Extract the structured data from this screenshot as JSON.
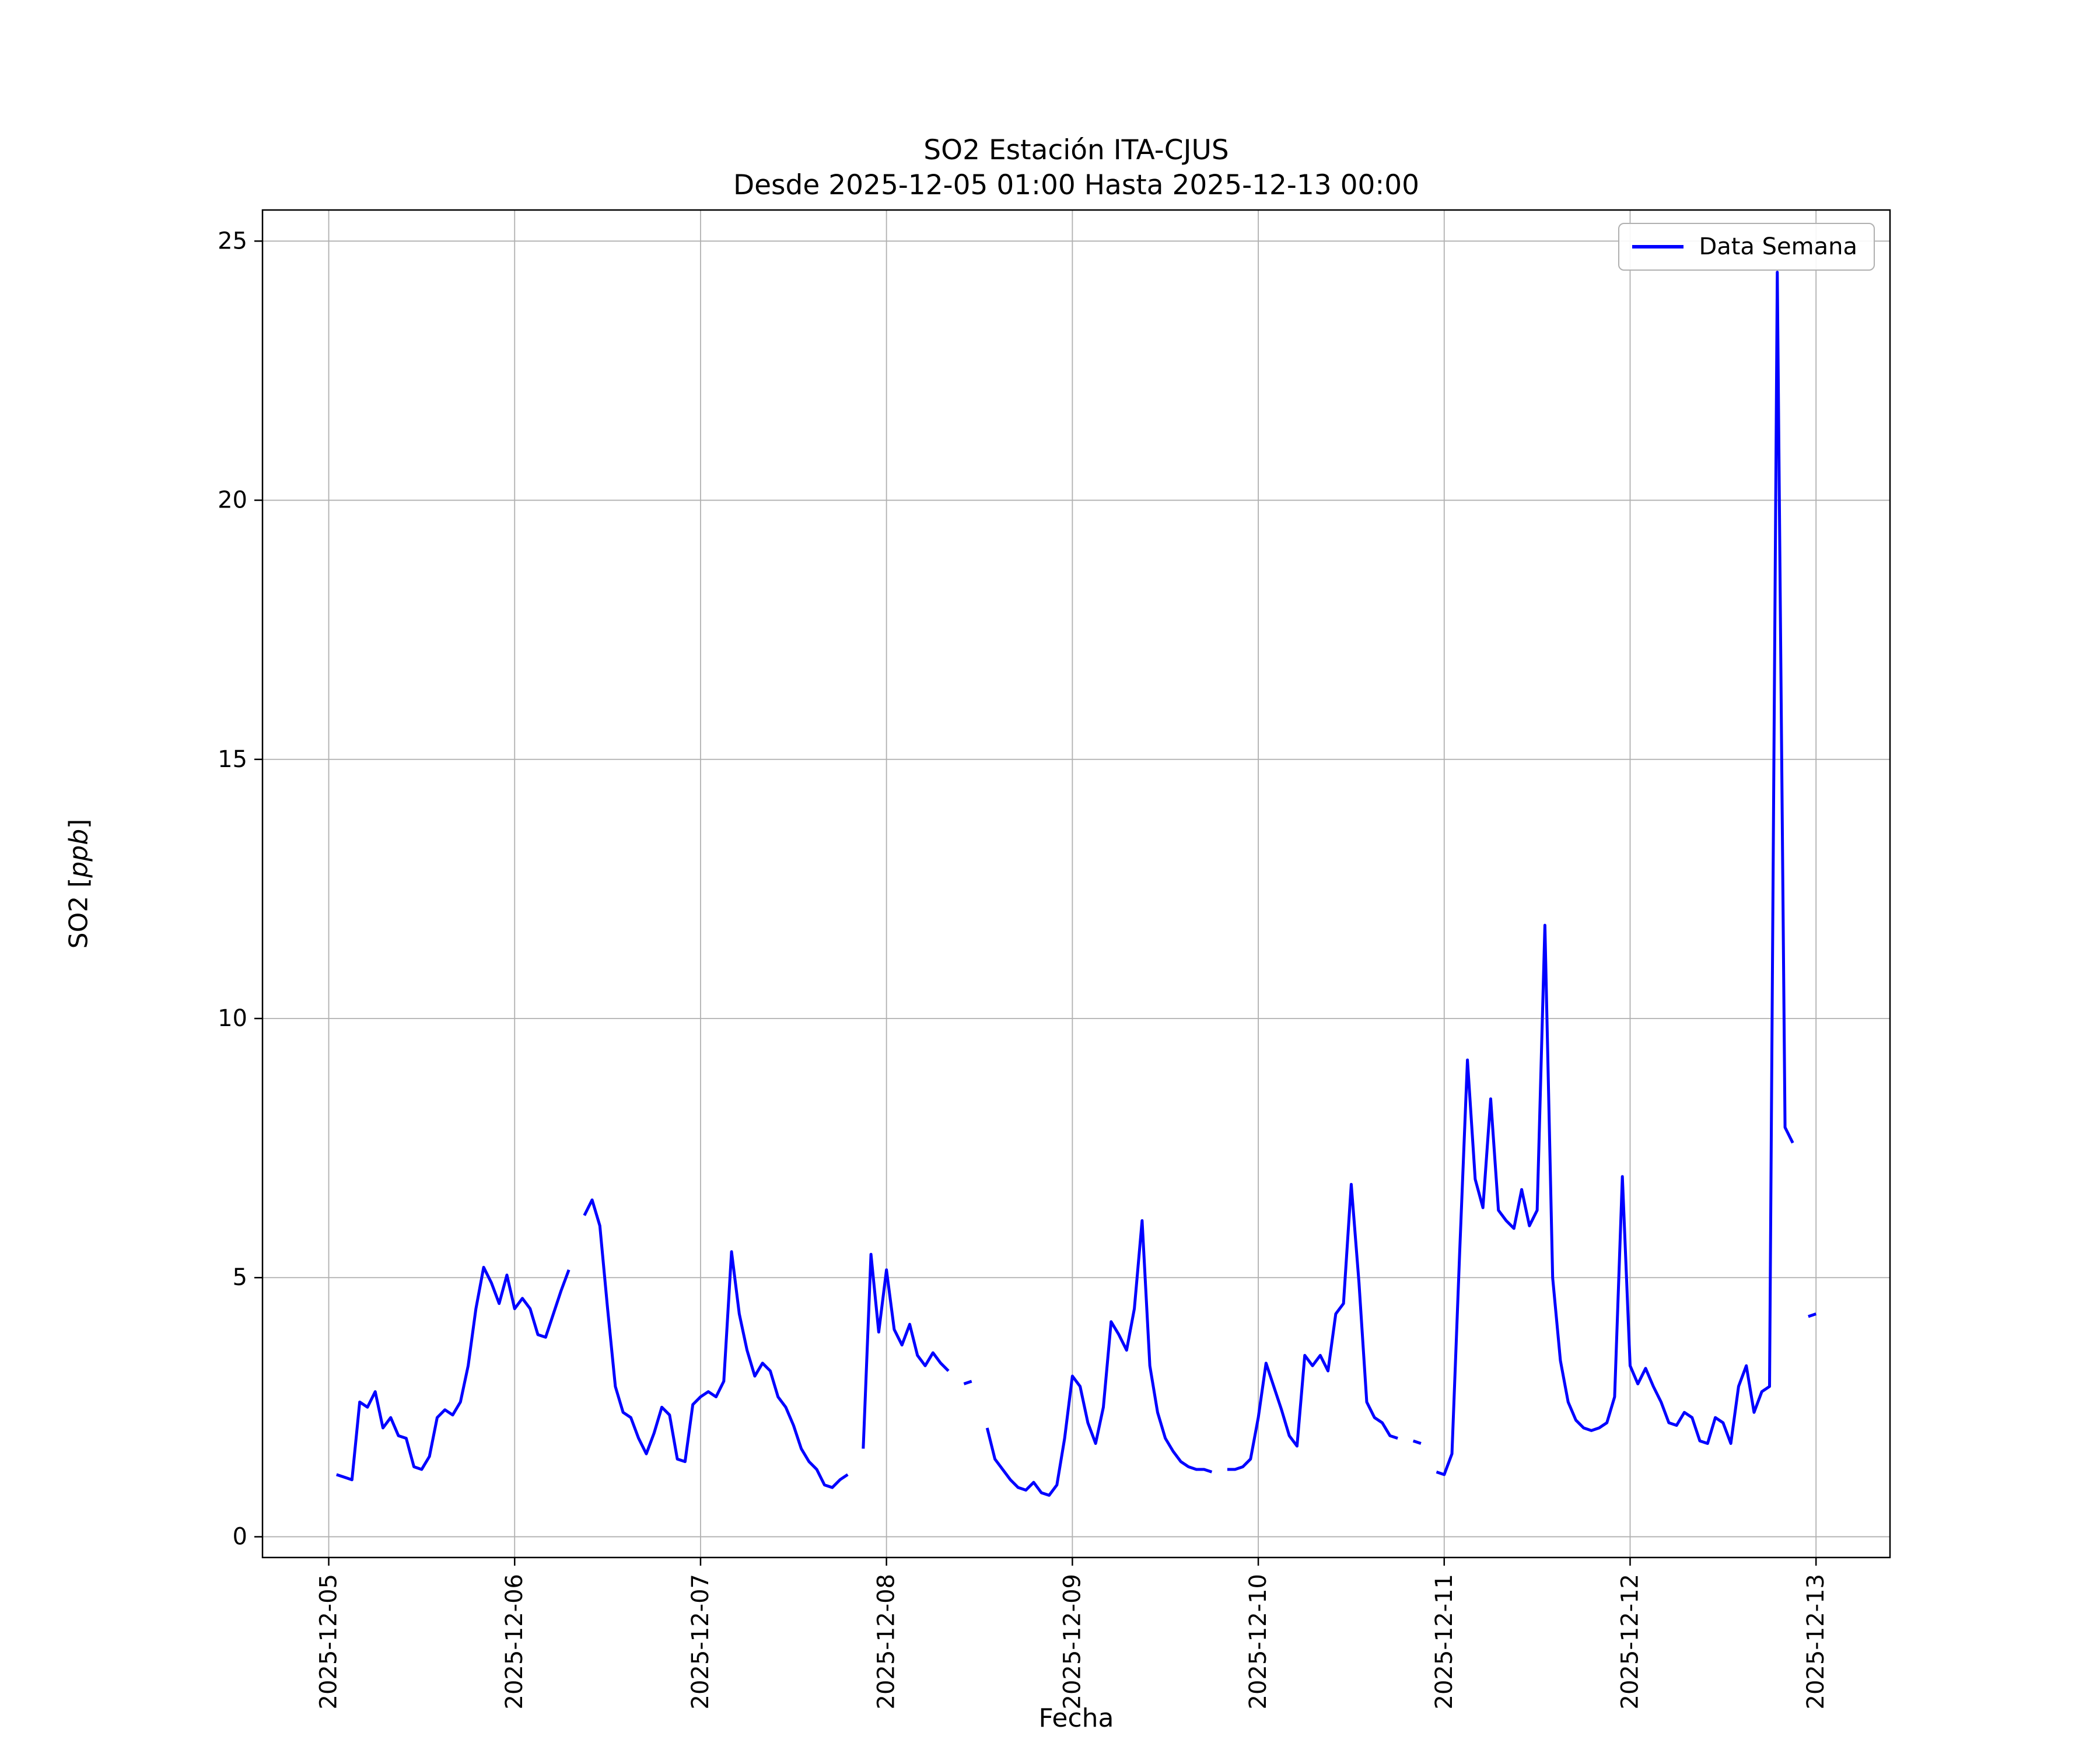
{
  "figure": {
    "title": "SO2 Estación ITA-CJUS",
    "subtitle": "Desde 2025-12-05 01:00 Hasta 2025-12-13 00:00",
    "xlabel": "Fecha",
    "ylabel_prefix": "SO2 [",
    "ylabel_math": "ppb",
    "ylabel_suffix": "]",
    "legend": {
      "label": "Data Semana",
      "line_color": "#0000ff"
    }
  },
  "chart_data": {
    "type": "line",
    "title": "SO2 Estación ITA-CJUS\nDesde 2025-12-05 01:00 Hasta 2025-12-13 00:00",
    "xlabel": "Fecha",
    "ylabel": "SO2 [ppb]",
    "grid": true,
    "grid_color": "#b0b0b0",
    "legend_position": "upper right",
    "x_start": "2025-12-05 01:00",
    "x_interval_hours": 1,
    "x_tick_labels": [
      "2025-12-05",
      "2025-12-06",
      "2025-12-07",
      "2025-12-08",
      "2025-12-09",
      "2025-12-10",
      "2025-12-11",
      "2025-12-12",
      "2025-12-13"
    ],
    "x_tick_hours": [
      -1,
      23,
      47,
      71,
      95,
      119,
      143,
      167,
      191
    ],
    "xlim_hours": [
      -9.55,
      200.55
    ],
    "y_ticks": [
      0,
      5,
      10,
      15,
      20,
      25
    ],
    "ylim": [
      -0.4,
      25.6
    ],
    "series": [
      {
        "name": "Data Semana",
        "color": "#0000ff",
        "values": [
          1.2,
          1.15,
          1.1,
          2.6,
          2.5,
          2.8,
          2.1,
          2.3,
          1.95,
          1.9,
          1.35,
          1.3,
          1.55,
          2.3,
          2.45,
          2.35,
          2.6,
          3.3,
          4.4,
          5.2,
          4.9,
          4.5,
          5.05,
          4.4,
          4.6,
          4.4,
          3.9,
          3.85,
          4.3,
          4.75,
          5.15,
          null,
          6.2,
          6.5,
          6.0,
          4.4,
          2.9,
          2.4,
          2.3,
          1.9,
          1.6,
          2.0,
          2.5,
          2.35,
          1.5,
          1.45,
          2.55,
          2.7,
          2.8,
          2.7,
          3.0,
          5.5,
          4.3,
          3.6,
          3.1,
          3.35,
          3.2,
          2.7,
          2.5,
          2.15,
          1.7,
          1.45,
          1.3,
          1.0,
          0.95,
          1.1,
          1.2,
          null,
          1.7,
          5.45,
          3.95,
          5.15,
          4.0,
          3.7,
          4.1,
          3.5,
          3.3,
          3.55,
          3.35,
          3.2,
          null,
          2.95,
          3.0,
          null,
          2.1,
          1.5,
          1.3,
          1.1,
          0.95,
          0.9,
          1.05,
          0.85,
          0.8,
          1.0,
          1.9,
          3.1,
          2.9,
          2.2,
          1.8,
          2.5,
          4.15,
          3.9,
          3.6,
          4.4,
          6.1,
          3.3,
          2.4,
          1.9,
          1.65,
          1.45,
          1.35,
          1.3,
          1.3,
          1.25,
          null,
          1.3,
          1.3,
          1.35,
          1.5,
          2.3,
          3.35,
          2.9,
          2.45,
          1.95,
          1.75,
          3.5,
          3.3,
          3.5,
          3.2,
          4.3,
          4.5,
          6.8,
          4.9,
          2.6,
          2.3,
          2.2,
          1.95,
          1.9,
          null,
          1.85,
          1.8,
          null,
          1.25,
          1.2,
          1.6,
          5.5,
          9.2,
          6.9,
          6.35,
          8.45,
          6.3,
          6.1,
          5.95,
          6.7,
          6.0,
          6.3,
          11.8,
          5.0,
          3.4,
          2.6,
          2.25,
          2.1,
          2.05,
          2.1,
          2.2,
          2.7,
          6.95,
          3.3,
          2.95,
          3.25,
          2.9,
          2.6,
          2.2,
          2.15,
          2.4,
          2.3,
          1.85,
          1.8,
          2.3,
          2.2,
          1.8,
          2.9,
          3.3,
          2.4,
          2.8,
          2.9,
          24.4,
          7.9,
          7.6,
          null,
          4.25,
          4.3
        ]
      }
    ]
  }
}
